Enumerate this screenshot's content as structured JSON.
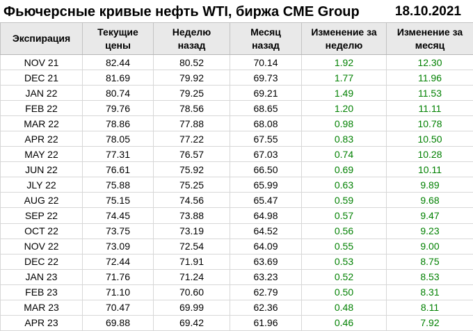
{
  "page": {
    "title": "Фьючерсные кривые нефть WTI, биржа CME Group",
    "date": "18.10.2021"
  },
  "colors": {
    "positive_change": "#008000",
    "header_background": "#e9e9e9",
    "table_border": "#c3c3c3",
    "text": "#000000"
  },
  "table": {
    "columns": [
      {
        "key": "expiration",
        "label": "Экспирация"
      },
      {
        "key": "current",
        "label": "Текущие\nцены"
      },
      {
        "key": "week_ago",
        "label": "Неделю\nназад"
      },
      {
        "key": "month_ago",
        "label": "Месяц\nназад"
      },
      {
        "key": "week_change",
        "label": "Изменение за\nнеделю"
      },
      {
        "key": "month_change",
        "label": "Изменение за\nмесяц"
      }
    ],
    "rows": [
      {
        "expiration": "NOV 21",
        "current": "82.44",
        "week_ago": "80.52",
        "month_ago": "70.14",
        "week_change": "1.92",
        "month_change": "12.30"
      },
      {
        "expiration": "DEC 21",
        "current": "81.69",
        "week_ago": "79.92",
        "month_ago": "69.73",
        "week_change": "1.77",
        "month_change": "11.96"
      },
      {
        "expiration": "JAN 22",
        "current": "80.74",
        "week_ago": "79.25",
        "month_ago": "69.21",
        "week_change": "1.49",
        "month_change": "11.53"
      },
      {
        "expiration": "FEB 22",
        "current": "79.76",
        "week_ago": "78.56",
        "month_ago": "68.65",
        "week_change": "1.20",
        "month_change": "11.11"
      },
      {
        "expiration": "MAR 22",
        "current": "78.86",
        "week_ago": "77.88",
        "month_ago": "68.08",
        "week_change": "0.98",
        "month_change": "10.78"
      },
      {
        "expiration": "APR 22",
        "current": "78.05",
        "week_ago": "77.22",
        "month_ago": "67.55",
        "week_change": "0.83",
        "month_change": "10.50"
      },
      {
        "expiration": "MAY 22",
        "current": "77.31",
        "week_ago": "76.57",
        "month_ago": "67.03",
        "week_change": "0.74",
        "month_change": "10.28"
      },
      {
        "expiration": "JUN 22",
        "current": "76.61",
        "week_ago": "75.92",
        "month_ago": "66.50",
        "week_change": "0.69",
        "month_change": "10.11"
      },
      {
        "expiration": "JLY 22",
        "current": "75.88",
        "week_ago": "75.25",
        "month_ago": "65.99",
        "week_change": "0.63",
        "month_change": "9.89"
      },
      {
        "expiration": "AUG 22",
        "current": "75.15",
        "week_ago": "74.56",
        "month_ago": "65.47",
        "week_change": "0.59",
        "month_change": "9.68"
      },
      {
        "expiration": "SEP 22",
        "current": "74.45",
        "week_ago": "73.88",
        "month_ago": "64.98",
        "week_change": "0.57",
        "month_change": "9.47"
      },
      {
        "expiration": "OCT 22",
        "current": "73.75",
        "week_ago": "73.19",
        "month_ago": "64.52",
        "week_change": "0.56",
        "month_change": "9.23"
      },
      {
        "expiration": "NOV 22",
        "current": "73.09",
        "week_ago": "72.54",
        "month_ago": "64.09",
        "week_change": "0.55",
        "month_change": "9.00"
      },
      {
        "expiration": "DEC 22",
        "current": "72.44",
        "week_ago": "71.91",
        "month_ago": "63.69",
        "week_change": "0.53",
        "month_change": "8.75"
      },
      {
        "expiration": "JAN 23",
        "current": "71.76",
        "week_ago": "71.24",
        "month_ago": "63.23",
        "week_change": "0.52",
        "month_change": "8.53"
      },
      {
        "expiration": "FEB 23",
        "current": "71.10",
        "week_ago": "70.60",
        "month_ago": "62.79",
        "week_change": "0.50",
        "month_change": "8.31"
      },
      {
        "expiration": "MAR 23",
        "current": "70.47",
        "week_ago": "69.99",
        "month_ago": "62.36",
        "week_change": "0.48",
        "month_change": "8.11"
      },
      {
        "expiration": "APR 23",
        "current": "69.88",
        "week_ago": "69.42",
        "month_ago": "61.96",
        "week_change": "0.46",
        "month_change": "7.92"
      }
    ]
  }
}
